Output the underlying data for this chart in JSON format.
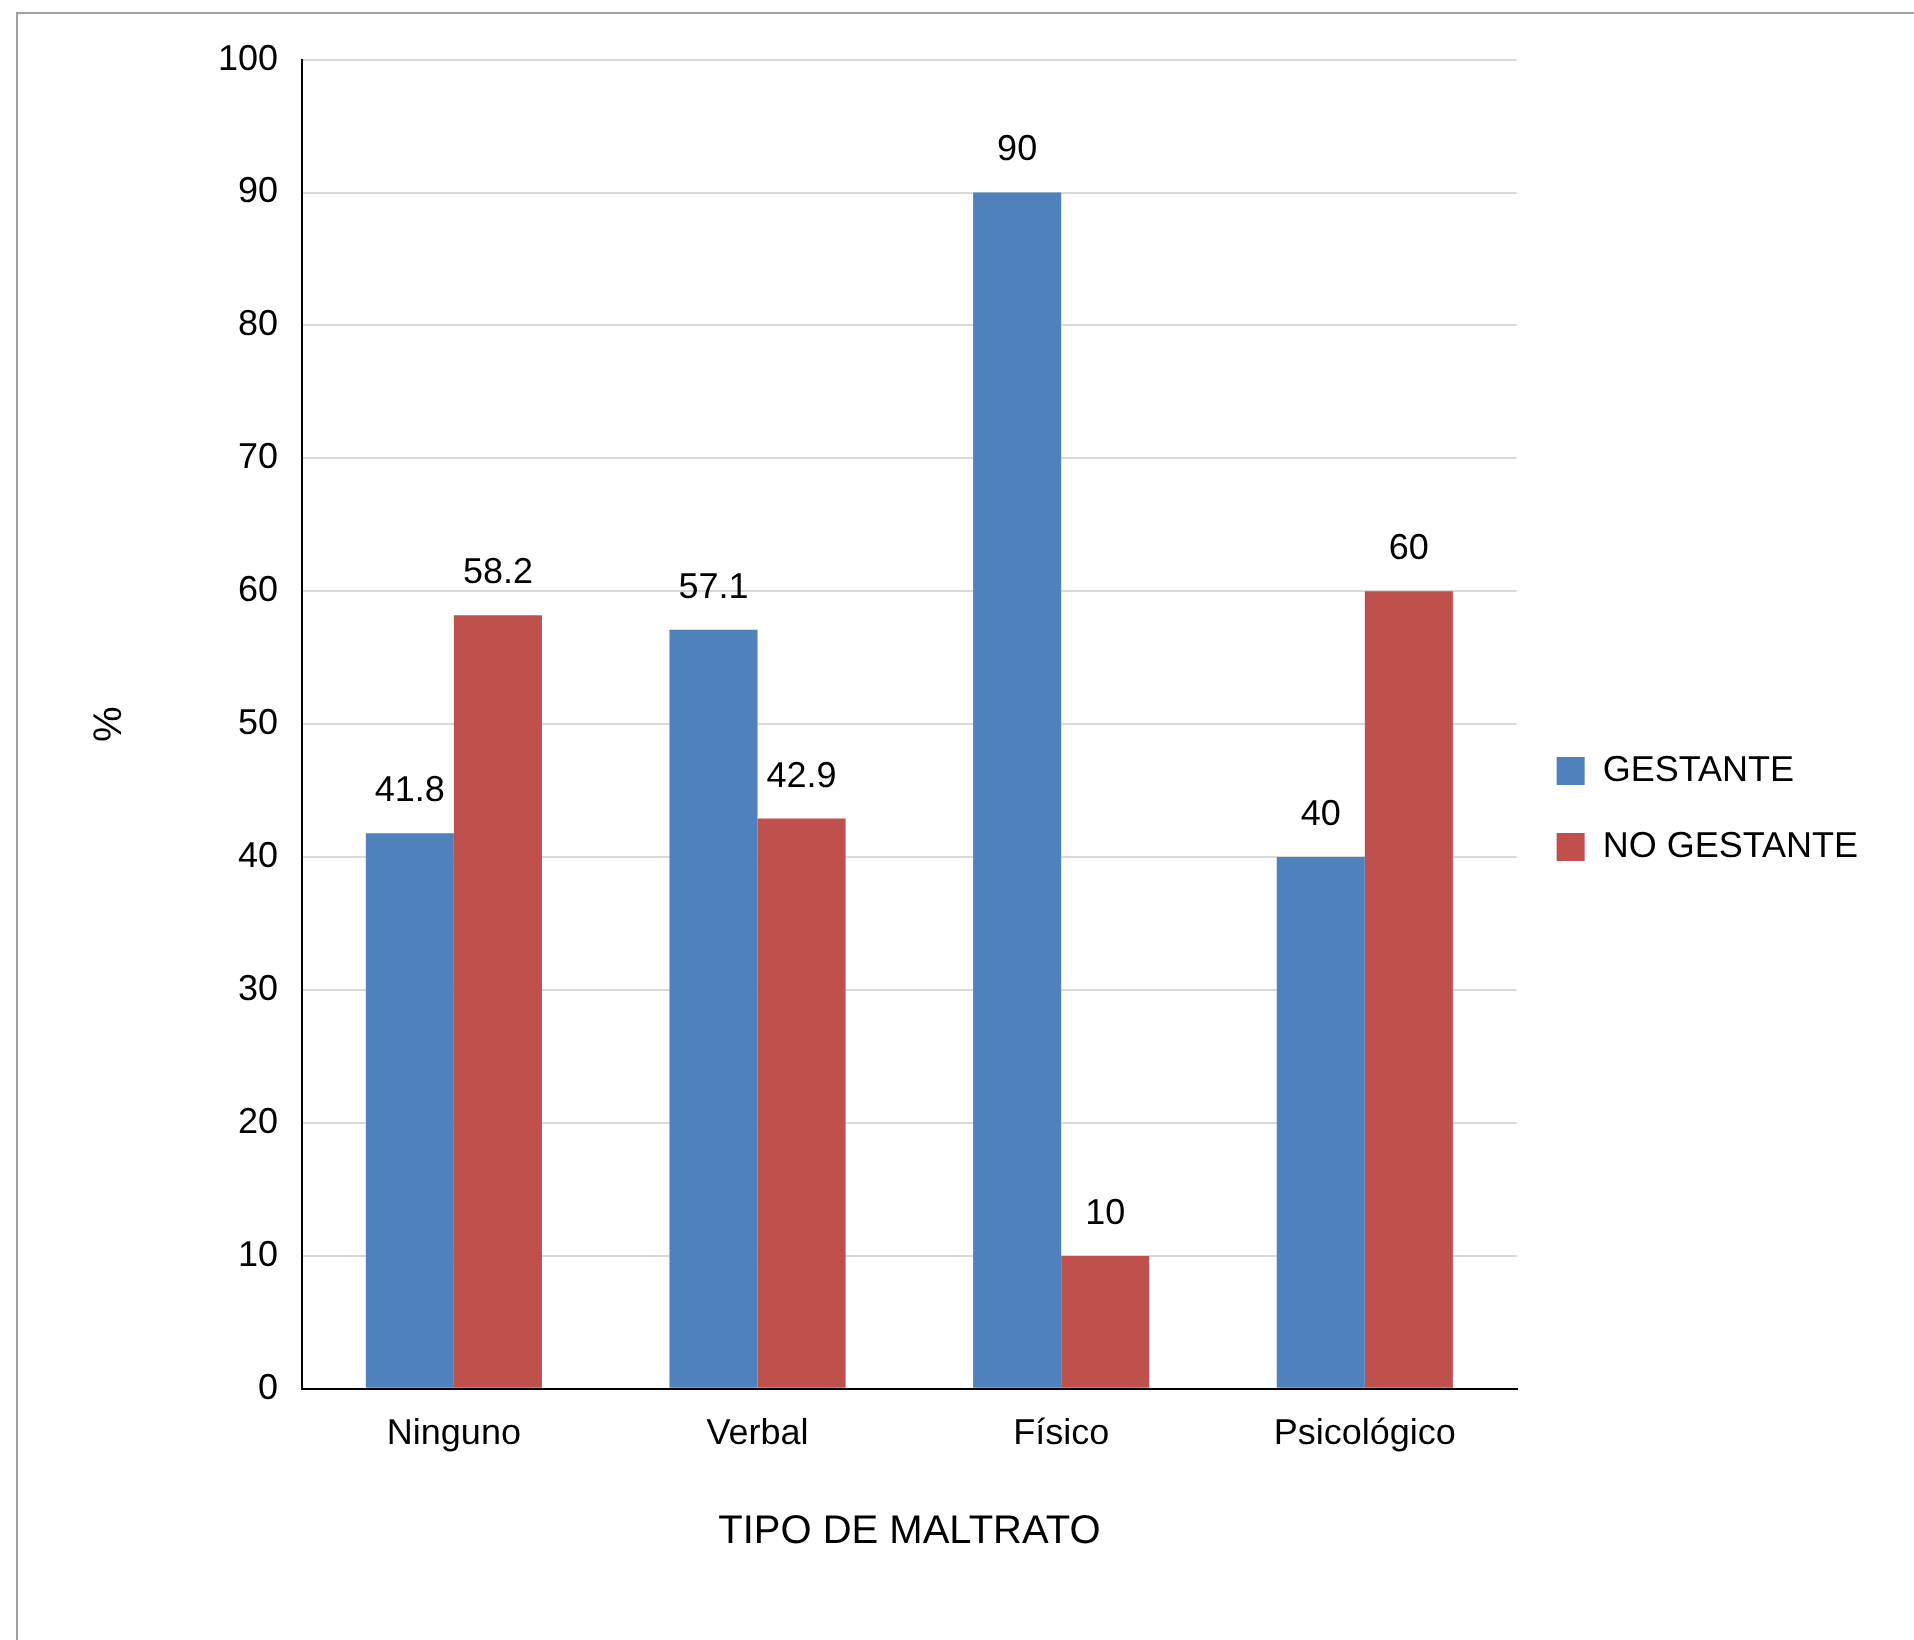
{
  "chart_data": {
    "type": "bar",
    "xlabel": "TIPO DE MALTRATO",
    "ylabel": "%",
    "categories": [
      "Ninguno",
      "Verbal",
      "Físico",
      "Psicológico"
    ],
    "series": [
      {
        "name": "GESTANTE",
        "color": "#4f81bd",
        "values": [
          41.8,
          57.1,
          90,
          40
        ]
      },
      {
        "name": "NO GESTANTE",
        "color": "#c0504d",
        "values": [
          58.2,
          42.9,
          10,
          60
        ]
      }
    ],
    "ylim": [
      0,
      100
    ],
    "yticks": [
      0,
      10,
      20,
      30,
      40,
      50,
      60,
      70,
      80,
      90,
      100
    ],
    "grid": "y",
    "legend": "right",
    "data_labels": true
  }
}
